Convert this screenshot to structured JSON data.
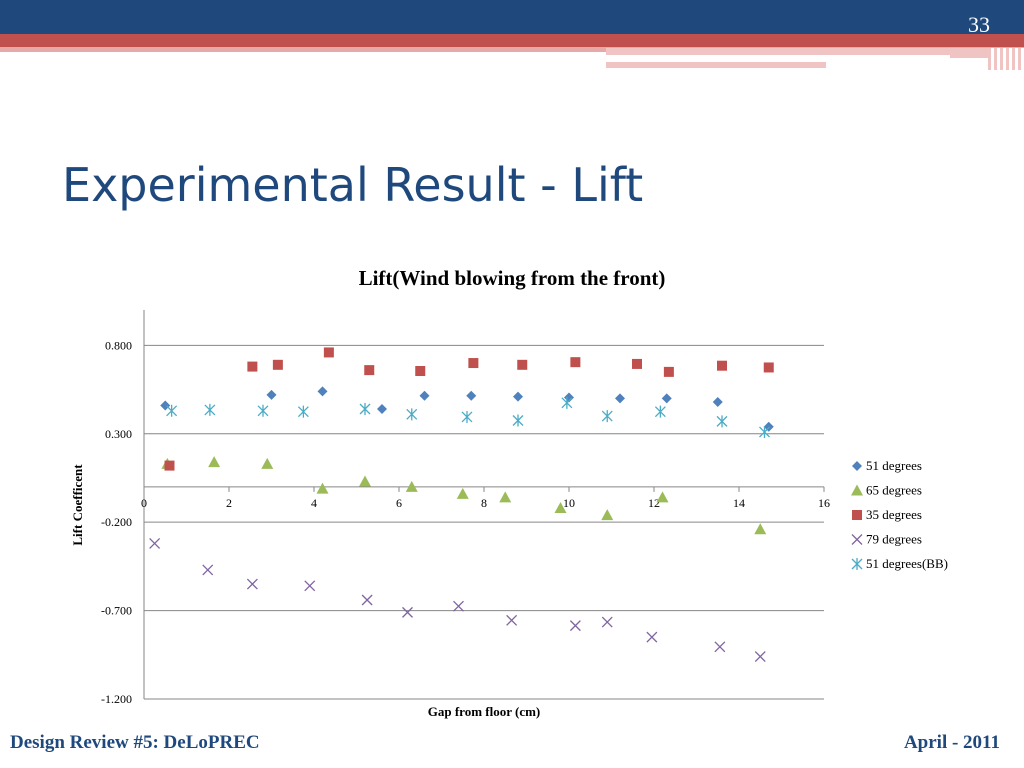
{
  "slide": {
    "number": "33",
    "title": "Experimental Result - Lift",
    "footer_left": "Design Review #5: DeLoPREC",
    "footer_right": "April - 2011"
  },
  "chart_data": {
    "type": "scatter",
    "title": "Lift(Wind blowing from the front)",
    "xlabel": "Gap from floor (cm)",
    "ylabel": "Lift Coefficent",
    "xlim": [
      0,
      16
    ],
    "ylim": [
      -1.2,
      1.0
    ],
    "x_ticks": [
      "0",
      "2",
      "4",
      "6",
      "8",
      "10",
      "12",
      "14",
      "16"
    ],
    "y_ticks": [
      "0.800",
      "0.300",
      "-0.200",
      "-0.700",
      "-1.200"
    ],
    "y_tick_values": [
      0.8,
      0.3,
      -0.2,
      -0.7,
      -1.2
    ],
    "grid": true,
    "legend_position": "right",
    "series": [
      {
        "name": "51 degrees",
        "marker": "diamond",
        "color": "#4f81bd",
        "points": [
          [
            0.5,
            0.46
          ],
          [
            3.0,
            0.52
          ],
          [
            4.2,
            0.54
          ],
          [
            5.6,
            0.44
          ],
          [
            6.6,
            0.515
          ],
          [
            7.7,
            0.515
          ],
          [
            8.8,
            0.51
          ],
          [
            10.0,
            0.505
          ],
          [
            11.2,
            0.5
          ],
          [
            12.3,
            0.5
          ],
          [
            13.5,
            0.48
          ],
          [
            14.7,
            0.34
          ]
        ]
      },
      {
        "name": "65 degrees",
        "marker": "triangle",
        "color": "#9bbb59",
        "points": [
          [
            0.55,
            0.13
          ],
          [
            1.65,
            0.14
          ],
          [
            2.9,
            0.13
          ],
          [
            4.2,
            -0.01
          ],
          [
            5.2,
            0.03
          ],
          [
            6.3,
            0.0
          ],
          [
            7.5,
            -0.04
          ],
          [
            8.5,
            -0.06
          ],
          [
            9.8,
            -0.12
          ],
          [
            10.9,
            -0.16
          ],
          [
            12.2,
            -0.06
          ],
          [
            14.5,
            -0.24
          ]
        ]
      },
      {
        "name": "35 degrees",
        "marker": "square",
        "color": "#c0504d",
        "points": [
          [
            0.6,
            0.12
          ],
          [
            2.55,
            0.68
          ],
          [
            3.15,
            0.69
          ],
          [
            4.35,
            0.76
          ],
          [
            5.3,
            0.66
          ],
          [
            6.5,
            0.655
          ],
          [
            7.75,
            0.7
          ],
          [
            8.9,
            0.69
          ],
          [
            10.15,
            0.705
          ],
          [
            11.6,
            0.695
          ],
          [
            12.35,
            0.65
          ],
          [
            13.6,
            0.685
          ],
          [
            14.7,
            0.675
          ]
        ]
      },
      {
        "name": "79 degrees",
        "marker": "x",
        "color": "#8064a2",
        "points": [
          [
            0.25,
            -0.32
          ],
          [
            1.5,
            -0.47
          ],
          [
            2.55,
            -0.55
          ],
          [
            3.9,
            -0.56
          ],
          [
            5.25,
            -0.64
          ],
          [
            6.2,
            -0.71
          ],
          [
            7.4,
            -0.675
          ],
          [
            8.65,
            -0.755
          ],
          [
            10.15,
            -0.785
          ],
          [
            10.9,
            -0.765
          ],
          [
            11.95,
            -0.85
          ],
          [
            13.55,
            -0.905
          ],
          [
            14.5,
            -0.96
          ]
        ]
      },
      {
        "name": "51 degrees(BB)",
        "marker": "asterisk",
        "color": "#4bacc6",
        "points": [
          [
            0.65,
            0.43
          ],
          [
            1.55,
            0.435
          ],
          [
            2.8,
            0.43
          ],
          [
            3.75,
            0.425
          ],
          [
            5.2,
            0.44
          ],
          [
            6.3,
            0.41
          ],
          [
            7.6,
            0.395
          ],
          [
            8.8,
            0.375
          ],
          [
            9.95,
            0.475
          ],
          [
            10.9,
            0.4
          ],
          [
            12.15,
            0.425
          ],
          [
            13.6,
            0.37
          ],
          [
            14.6,
            0.31
          ]
        ]
      }
    ]
  }
}
